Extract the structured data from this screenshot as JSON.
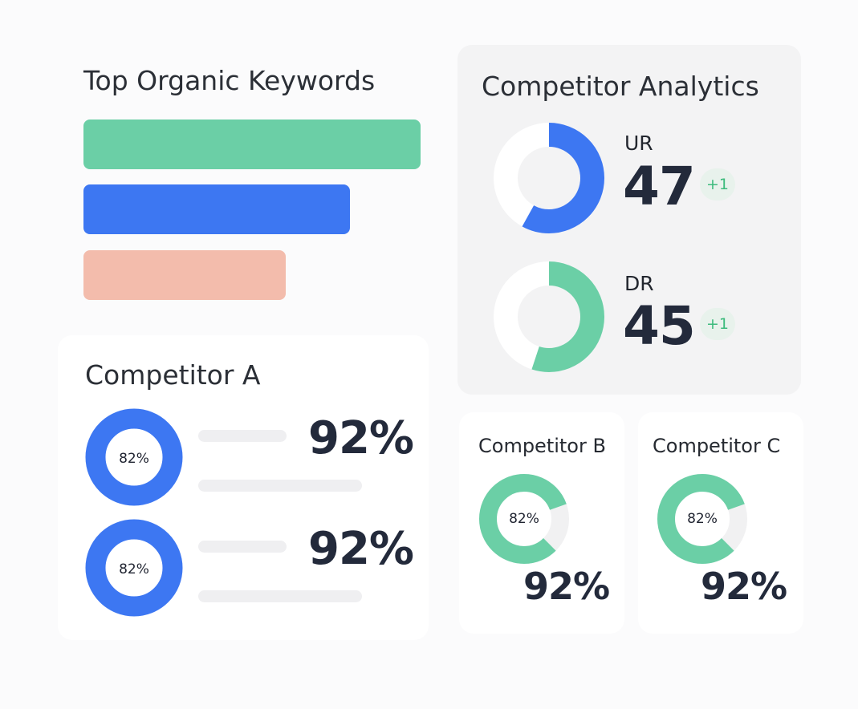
{
  "keywords": {
    "title": "Top Organic Keywords",
    "bars": [
      {
        "value": 1.0,
        "color": "#6bcfa6"
      },
      {
        "value": 0.79,
        "color": "#3d77f2"
      },
      {
        "value": 0.6,
        "color": "#f3bcac"
      }
    ]
  },
  "analytics": {
    "title": "Competitor Analytics",
    "metrics": [
      {
        "label": "UR",
        "value": "47",
        "delta": "+1",
        "fraction": 0.58,
        "color": "#3d77f2"
      },
      {
        "label": "DR",
        "value": "45",
        "delta": "+1",
        "fraction": 0.55,
        "color": "#6bcfa6"
      }
    ]
  },
  "competitor_a": {
    "title": "Competitor A",
    "rows": [
      {
        "ring_label": "82%",
        "value": "92%",
        "color": "#3d77f2"
      },
      {
        "ring_label": "82%",
        "value": "92%",
        "color": "#3d77f2"
      }
    ]
  },
  "competitor_b": {
    "title": "Competitor B",
    "ring_label": "82%",
    "value": "92%",
    "fraction": 0.82,
    "color": "#6bcfa6"
  },
  "competitor_c": {
    "title": "Competitor C",
    "ring_label": "82%",
    "value": "92%",
    "fraction": 0.82,
    "color": "#6bcfa6"
  }
}
